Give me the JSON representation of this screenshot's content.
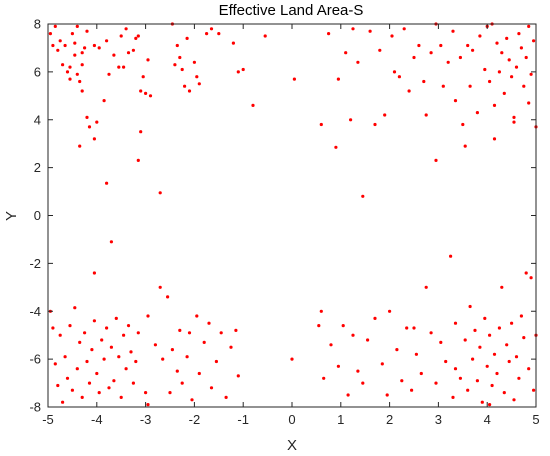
{
  "chart_data": {
    "type": "scatter",
    "title": "Effective Land Area-S",
    "xlabel": "X",
    "ylabel": "Y",
    "xlim": [
      -5,
      5
    ],
    "ylim": [
      -8,
      8
    ],
    "xticks": [
      -5,
      -4,
      -3,
      -2,
      -1,
      0,
      1,
      2,
      3,
      4,
      5
    ],
    "yticks": [
      -8,
      -6,
      -4,
      -2,
      0,
      2,
      4,
      6,
      8
    ],
    "grid": false,
    "marker_color": "#ff0000",
    "series": [
      {
        "points": [
          [
            -4.95,
            7.6
          ],
          [
            -4.85,
            7.9
          ],
          [
            -4.9,
            7.1
          ],
          [
            -4.8,
            6.9
          ],
          [
            -4.75,
            7.3
          ],
          [
            -4.7,
            6.3
          ],
          [
            -4.65,
            7.1
          ],
          [
            -4.6,
            6.0
          ],
          [
            -4.55,
            6.2
          ],
          [
            -4.55,
            5.7
          ],
          [
            -4.5,
            7.6
          ],
          [
            -4.45,
            7.2
          ],
          [
            -4.45,
            6.7
          ],
          [
            -4.4,
            7.9
          ],
          [
            -4.4,
            5.9
          ],
          [
            -4.35,
            5.6
          ],
          [
            -4.3,
            6.8
          ],
          [
            -4.3,
            6.3
          ],
          [
            -4.3,
            5.2
          ],
          [
            -4.35,
            2.9
          ],
          [
            -4.25,
            7.0
          ],
          [
            -4.2,
            7.7
          ],
          [
            -4.2,
            4.1
          ],
          [
            -4.15,
            3.7
          ],
          [
            -4.05,
            7.1
          ],
          [
            -4.0,
            3.9
          ],
          [
            -3.95,
            7.0
          ],
          [
            -4.05,
            3.2
          ],
          [
            -3.85,
            4.8
          ],
          [
            -3.8,
            7.3
          ],
          [
            -3.75,
            5.9
          ],
          [
            -3.65,
            6.7
          ],
          [
            -3.55,
            6.2
          ],
          [
            -3.5,
            7.5
          ],
          [
            -3.45,
            6.2
          ],
          [
            -3.4,
            7.8
          ],
          [
            -3.35,
            6.8
          ],
          [
            -3.25,
            6.9
          ],
          [
            -3.2,
            7.4
          ],
          [
            -3.15,
            7.5
          ],
          [
            -3.1,
            5.2
          ],
          [
            -3.1,
            3.5
          ],
          [
            -3.15,
            2.3
          ],
          [
            -3.05,
            5.8
          ],
          [
            -3.0,
            5.1
          ],
          [
            -2.95,
            6.5
          ],
          [
            -2.9,
            5.0
          ],
          [
            -2.45,
            8.0
          ],
          [
            -2.4,
            6.3
          ],
          [
            -2.35,
            7.1
          ],
          [
            -2.3,
            6.6
          ],
          [
            -2.25,
            6.1
          ],
          [
            -2.2,
            5.4
          ],
          [
            -2.15,
            7.4
          ],
          [
            -2.1,
            5.2
          ],
          [
            -2.0,
            6.4
          ],
          [
            -1.95,
            5.8
          ],
          [
            -1.9,
            5.5
          ],
          [
            -1.75,
            7.6
          ],
          [
            -1.65,
            7.8
          ],
          [
            -1.5,
            7.6
          ],
          [
            -1.2,
            7.2
          ],
          [
            -1.1,
            6.0
          ],
          [
            -1.0,
            6.1
          ],
          [
            -0.8,
            4.6
          ],
          [
            -0.55,
            7.5
          ],
          [
            -3.8,
            1.35
          ],
          [
            -2.7,
            0.95
          ],
          [
            -3.7,
            -1.1
          ],
          [
            -4.05,
            -2.4
          ],
          [
            0.05,
            5.7
          ],
          [
            0.6,
            3.8
          ],
          [
            0.75,
            7.6
          ],
          [
            0.9,
            2.85
          ],
          [
            0.95,
            5.7
          ],
          [
            1.1,
            6.8
          ],
          [
            1.2,
            4.0
          ],
          [
            1.25,
            7.8
          ],
          [
            1.35,
            6.4
          ],
          [
            1.45,
            0.8
          ],
          [
            1.6,
            7.7
          ],
          [
            1.7,
            3.8
          ],
          [
            1.8,
            6.9
          ],
          [
            1.9,
            4.2
          ],
          [
            2.05,
            7.5
          ],
          [
            2.1,
            6.0
          ],
          [
            2.2,
            5.8
          ],
          [
            2.3,
            7.8
          ],
          [
            2.4,
            5.2
          ],
          [
            2.5,
            6.6
          ],
          [
            2.6,
            7.1
          ],
          [
            2.7,
            5.6
          ],
          [
            2.75,
            4.2
          ],
          [
            2.85,
            6.8
          ],
          [
            2.95,
            8.0
          ],
          [
            2.95,
            2.3
          ],
          [
            3.05,
            7.1
          ],
          [
            3.1,
            5.4
          ],
          [
            3.2,
            6.4
          ],
          [
            3.3,
            7.7
          ],
          [
            3.35,
            4.8
          ],
          [
            3.45,
            6.6
          ],
          [
            3.5,
            3.8
          ],
          [
            3.55,
            2.9
          ],
          [
            3.6,
            7.1
          ],
          [
            3.65,
            5.4
          ],
          [
            3.7,
            6.9
          ],
          [
            3.8,
            4.3
          ],
          [
            3.85,
            7.5
          ],
          [
            3.95,
            6.1
          ],
          [
            4.0,
            7.9
          ],
          [
            4.05,
            5.6
          ],
          [
            4.1,
            8.0
          ],
          [
            4.15,
            4.6
          ],
          [
            4.15,
            3.2
          ],
          [
            4.2,
            7.2
          ],
          [
            4.25,
            6.0
          ],
          [
            4.3,
            6.8
          ],
          [
            4.35,
            5.1
          ],
          [
            4.4,
            7.4
          ],
          [
            4.45,
            6.5
          ],
          [
            4.5,
            5.8
          ],
          [
            4.55,
            4.1
          ],
          [
            4.55,
            3.9
          ],
          [
            4.6,
            6.2
          ],
          [
            4.65,
            7.6
          ],
          [
            4.7,
            7.0
          ],
          [
            4.75,
            5.4
          ],
          [
            4.8,
            6.6
          ],
          [
            4.85,
            7.9
          ],
          [
            4.85,
            4.7
          ],
          [
            4.9,
            5.9
          ],
          [
            4.95,
            7.3
          ],
          [
            5.0,
            3.7
          ],
          [
            -4.95,
            -4.0
          ],
          [
            -4.9,
            -4.7
          ],
          [
            -4.85,
            -6.2
          ],
          [
            -4.8,
            -7.1
          ],
          [
            -4.75,
            -5.0
          ],
          [
            -4.7,
            -7.8
          ],
          [
            -4.65,
            -5.9
          ],
          [
            -4.6,
            -6.8
          ],
          [
            -4.55,
            -4.6
          ],
          [
            -4.5,
            -7.3
          ],
          [
            -4.45,
            -3.85
          ],
          [
            -4.4,
            -6.4
          ],
          [
            -4.35,
            -5.3
          ],
          [
            -4.3,
            -7.6
          ],
          [
            -4.25,
            -4.9
          ],
          [
            -4.2,
            -6.1
          ],
          [
            -4.15,
            -7.0
          ],
          [
            -4.1,
            -5.6
          ],
          [
            -4.05,
            -4.4
          ],
          [
            -4.0,
            -6.6
          ],
          [
            -3.95,
            -7.4
          ],
          [
            -3.9,
            -5.2
          ],
          [
            -3.85,
            -6.0
          ],
          [
            -3.8,
            -4.7
          ],
          [
            -3.75,
            -7.2
          ],
          [
            -3.7,
            -5.5
          ],
          [
            -3.65,
            -6.9
          ],
          [
            -3.6,
            -4.3
          ],
          [
            -3.55,
            -5.9
          ],
          [
            -3.5,
            -7.6
          ],
          [
            -3.45,
            -5.0
          ],
          [
            -3.4,
            -6.4
          ],
          [
            -3.35,
            -4.6
          ],
          [
            -3.3,
            -5.7
          ],
          [
            -3.25,
            -7.0
          ],
          [
            -3.2,
            -6.1
          ],
          [
            -3.15,
            -4.9
          ],
          [
            -3.0,
            -7.4
          ],
          [
            -2.95,
            -4.2
          ],
          [
            -2.8,
            -5.4
          ],
          [
            -2.7,
            -3.0
          ],
          [
            -2.65,
            -6.0
          ],
          [
            -2.55,
            -3.4
          ],
          [
            -2.5,
            -7.4
          ],
          [
            -2.45,
            -5.6
          ],
          [
            -2.35,
            -6.5
          ],
          [
            -2.3,
            -4.8
          ],
          [
            -2.25,
            -7.0
          ],
          [
            -2.15,
            -5.9
          ],
          [
            -2.05,
            -7.7
          ],
          [
            -1.95,
            -4.2
          ],
          [
            -1.9,
            -6.6
          ],
          [
            -1.8,
            -5.3
          ],
          [
            -1.7,
            -4.5
          ],
          [
            -1.65,
            -7.2
          ],
          [
            -1.55,
            -6.1
          ],
          [
            -1.45,
            -4.9
          ],
          [
            -1.35,
            -7.6
          ],
          [
            -1.25,
            -5.5
          ],
          [
            -1.15,
            -4.8
          ],
          [
            -1.1,
            -6.7
          ],
          [
            -2.95,
            -7.9
          ],
          [
            -2.1,
            -4.9
          ],
          [
            0.0,
            -6.0
          ],
          [
            0.55,
            -4.6
          ],
          [
            0.6,
            -4.0
          ],
          [
            0.65,
            -6.8
          ],
          [
            0.8,
            -5.4
          ],
          [
            0.95,
            -6.3
          ],
          [
            1.05,
            -4.6
          ],
          [
            1.15,
            -7.5
          ],
          [
            1.25,
            -5.0
          ],
          [
            1.35,
            -6.5
          ],
          [
            1.45,
            -7.0
          ],
          [
            1.55,
            -5.2
          ],
          [
            1.7,
            -4.3
          ],
          [
            1.85,
            -6.2
          ],
          [
            1.95,
            -7.5
          ],
          [
            2.0,
            -4.0
          ],
          [
            2.15,
            -5.6
          ],
          [
            2.25,
            -6.9
          ],
          [
            2.35,
            -4.7
          ],
          [
            2.45,
            -7.3
          ],
          [
            2.55,
            -5.8
          ],
          [
            2.65,
            -6.6
          ],
          [
            2.75,
            -3.0
          ],
          [
            2.85,
            -4.9
          ],
          [
            2.95,
            -7.0
          ],
          [
            3.05,
            -5.3
          ],
          [
            3.15,
            -6.1
          ],
          [
            3.25,
            -1.7
          ],
          [
            3.3,
            -7.6
          ],
          [
            3.35,
            -4.5
          ],
          [
            3.45,
            -6.8
          ],
          [
            3.55,
            -5.2
          ],
          [
            3.6,
            -7.3
          ],
          [
            3.65,
            -3.8
          ],
          [
            3.7,
            -6.0
          ],
          [
            3.75,
            -4.8
          ],
          [
            3.8,
            -6.9
          ],
          [
            3.85,
            -5.5
          ],
          [
            3.9,
            -7.8
          ],
          [
            3.95,
            -4.3
          ],
          [
            4.0,
            -6.3
          ],
          [
            4.05,
            -5.0
          ],
          [
            4.1,
            -7.1
          ],
          [
            4.15,
            -5.8
          ],
          [
            4.2,
            -6.6
          ],
          [
            4.25,
            -4.7
          ],
          [
            4.3,
            -3.0
          ],
          [
            4.35,
            -7.4
          ],
          [
            4.4,
            -5.4
          ],
          [
            4.45,
            -6.1
          ],
          [
            4.5,
            -4.5
          ],
          [
            4.55,
            -7.7
          ],
          [
            4.6,
            -5.9
          ],
          [
            4.65,
            -6.8
          ],
          [
            4.7,
            -4.2
          ],
          [
            4.75,
            -5.1
          ],
          [
            4.8,
            -2.4
          ],
          [
            4.85,
            -6.4
          ],
          [
            4.9,
            -2.6
          ],
          [
            4.95,
            -7.3
          ],
          [
            5.0,
            -5.0
          ],
          [
            4.05,
            -7.9
          ],
          [
            3.35,
            -6.4
          ],
          [
            2.5,
            -4.7
          ]
        ]
      }
    ]
  }
}
